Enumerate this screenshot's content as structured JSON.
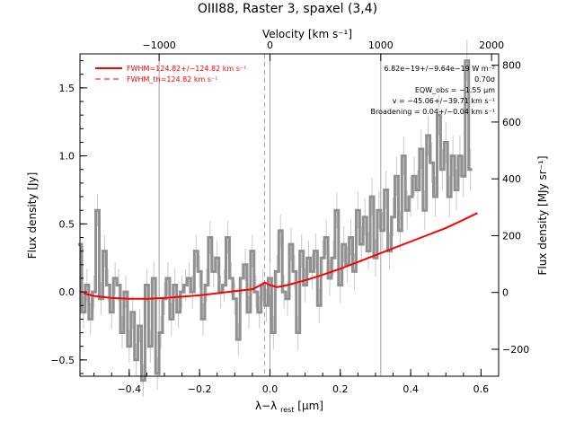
{
  "chart_data": {
    "type": "line",
    "title": "OIII88, Raster 3, spaxel (3,4)",
    "top_axis": {
      "label": "Velocity [km s⁻¹]",
      "ticks": [
        -1000,
        0,
        1000,
        2000
      ]
    },
    "xlabel": "λ−λ",
    "xlabel_sub": "rest",
    "xlabel_unit": " [μm]",
    "ylabel": "Flux density [Jy]",
    "ylabel_right": "Flux density [MJy sr⁻¹]",
    "xlim": [
      -0.54,
      0.65
    ],
    "ylim": [
      -0.62,
      1.75
    ],
    "ylim_right": [
      -295,
      840
    ],
    "x_ticks": [
      -0.4,
      -0.2,
      0.0,
      0.2,
      0.4,
      0.6
    ],
    "x_tick_labels": [
      "−0.4",
      "−0.2",
      "0.0",
      "0.2",
      "0.4",
      "0.6"
    ],
    "y_ticks": [
      -0.5,
      0.0,
      0.5,
      1.0,
      1.5
    ],
    "y_tick_labels": [
      "−0.5",
      "0.0",
      "0.5",
      "1.0",
      "1.5"
    ],
    "y_right_ticks": [
      -200,
      0,
      200,
      400,
      600,
      800
    ],
    "y_right_tick_labels": [
      "−200",
      "0",
      "200",
      "400",
      "600",
      "800"
    ],
    "vertical_lines": [
      -0.315,
      0.0,
      0.315
    ],
    "dashed_line_x": -0.015,
    "grid": false,
    "legend": {
      "placement": "top-left",
      "entries": [
        {
          "label": "FWHM=124.82+/−124.82 km s⁻¹",
          "style": "solid"
        },
        {
          "label": "FWHM_th=124.82 km s⁻¹",
          "style": "dashed"
        }
      ]
    },
    "annotations": [
      "6.82e−19+/−9.64e−19 W m⁻²",
      "0.70σ",
      "EQW_obs = −1.55 μm",
      "v = −45.06+/−39.71 km s⁻¹",
      "Broadening = 0.04+/−0.04 km s⁻¹"
    ],
    "colors": {
      "data": "#909090",
      "fit": "#ff0000",
      "vlines": "#a0a0a0"
    },
    "series": [
      {
        "style": "step",
        "x": [
          -0.54,
          -0.53,
          -0.52,
          -0.51,
          -0.5,
          -0.49,
          -0.48,
          -0.47,
          -0.46,
          -0.45,
          -0.44,
          -0.43,
          -0.42,
          -0.41,
          -0.4,
          -0.39,
          -0.38,
          -0.37,
          -0.36,
          -0.35,
          -0.34,
          -0.33,
          -0.32,
          -0.31,
          -0.3,
          -0.29,
          -0.28,
          -0.27,
          -0.26,
          -0.25,
          -0.24,
          -0.23,
          -0.22,
          -0.21,
          -0.2,
          -0.19,
          -0.18,
          -0.17,
          -0.16,
          -0.15,
          -0.14,
          -0.13,
          -0.12,
          -0.11,
          -0.1,
          -0.09,
          -0.08,
          -0.07,
          -0.06,
          -0.05,
          -0.04,
          -0.03,
          -0.02,
          -0.01,
          0.0,
          0.01,
          0.02,
          0.03,
          0.04,
          0.05,
          0.06,
          0.07,
          0.08,
          0.09,
          0.1,
          0.11,
          0.12,
          0.13,
          0.14,
          0.15,
          0.16,
          0.17,
          0.18,
          0.19,
          0.2,
          0.21,
          0.22,
          0.23,
          0.24,
          0.25,
          0.26,
          0.27,
          0.28,
          0.29,
          0.3,
          0.31,
          0.32,
          0.33,
          0.34,
          0.35,
          0.36,
          0.37,
          0.38,
          0.39,
          0.4,
          0.41,
          0.42,
          0.43,
          0.44,
          0.45,
          0.46,
          0.47,
          0.48,
          0.49,
          0.5,
          0.51,
          0.52,
          0.53,
          0.54,
          0.55,
          0.56,
          0.57
        ],
        "y": [
          0.35,
          -0.15,
          0.05,
          -0.2,
          0.0,
          0.6,
          -0.05,
          0.3,
          0.05,
          -0.15,
          0.1,
          0.05,
          -0.3,
          0.0,
          -0.4,
          -0.15,
          -0.5,
          -0.25,
          -0.65,
          0.05,
          -0.4,
          0.1,
          -0.6,
          -0.3,
          -0.05,
          0.1,
          -0.2,
          0.05,
          -0.15,
          0.0,
          0.05,
          0.1,
          0.0,
          0.3,
          0.15,
          -0.2,
          0.05,
          0.4,
          0.15,
          0.25,
          0.0,
          0.05,
          0.4,
          0.1,
          -0.05,
          -0.35,
          0.1,
          0.2,
          -0.15,
          0.3,
          0.0,
          -0.15,
          0.05,
          -0.1,
          0.1,
          -0.3,
          0.15,
          0.45,
          0.0,
          -0.05,
          0.35,
          0.15,
          -0.3,
          0.3,
          0.05,
          0.25,
          0.15,
          0.3,
          -0.1,
          0.25,
          0.4,
          0.1,
          0.25,
          0.6,
          0.05,
          0.35,
          0.2,
          0.4,
          0.15,
          0.6,
          0.35,
          0.55,
          0.3,
          0.7,
          0.25,
          0.6,
          0.45,
          0.75,
          0.3,
          0.55,
          0.85,
          0.45,
          1.0,
          0.6,
          0.7,
          0.85,
          0.75,
          1.05,
          0.6,
          1.15,
          0.95,
          0.7,
          1.3,
          0.9,
          1.1,
          0.7,
          1.0,
          0.75,
          1.0,
          0.85,
          1.7,
          0.9
        ]
      },
      {
        "name": "FWHM=124.82+/−124.82 km s⁻¹",
        "style": "line",
        "x": [
          -0.53,
          -0.5,
          -0.45,
          -0.4,
          -0.35,
          -0.3,
          -0.25,
          -0.2,
          -0.15,
          -0.1,
          -0.05,
          -0.03,
          -0.015,
          0.0,
          0.02,
          0.05,
          0.1,
          0.15,
          0.2,
          0.25,
          0.3,
          0.35,
          0.4,
          0.45,
          0.5,
          0.55,
          0.59
        ],
        "y": [
          -0.01,
          -0.03,
          -0.045,
          -0.05,
          -0.05,
          -0.045,
          -0.035,
          -0.025,
          -0.01,
          0.005,
          0.02,
          0.045,
          0.07,
          0.05,
          0.035,
          0.05,
          0.085,
          0.125,
          0.17,
          0.22,
          0.27,
          0.32,
          0.37,
          0.42,
          0.47,
          0.53,
          0.58
        ]
      }
    ]
  }
}
